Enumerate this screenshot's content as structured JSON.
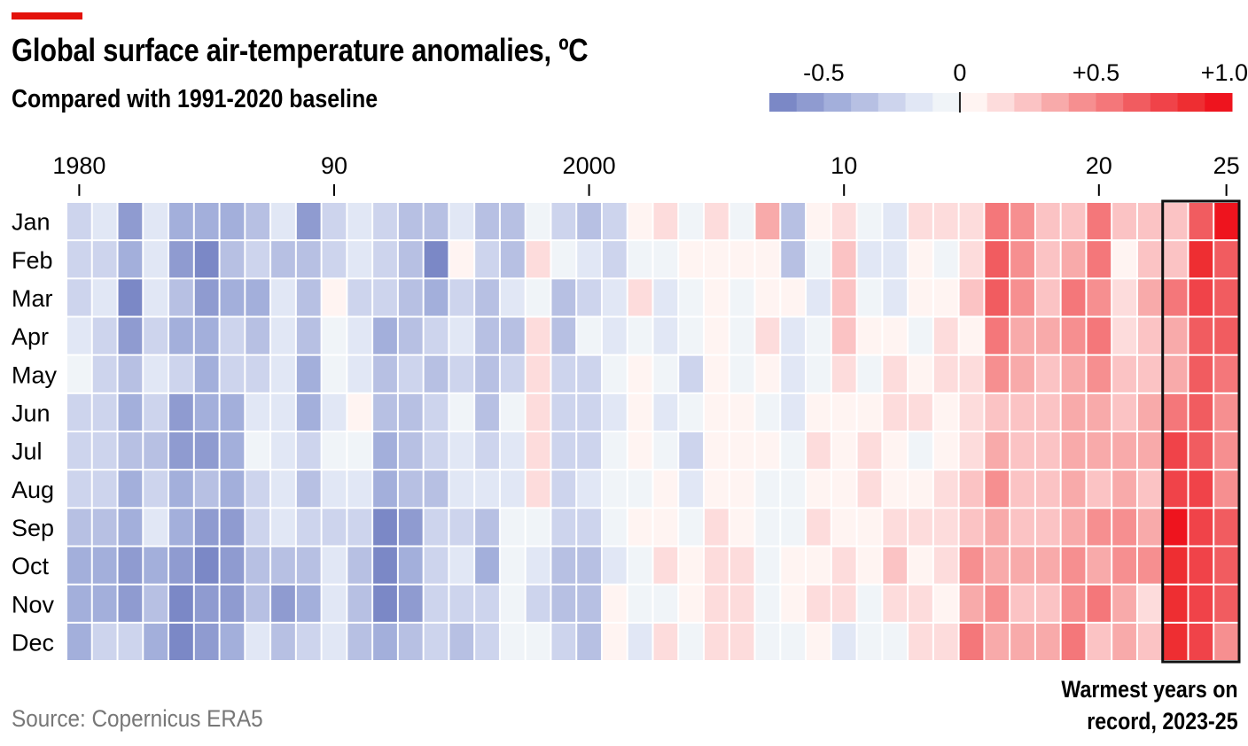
{
  "header": {
    "title": "Global surface air-temperature anomalies, ºC",
    "subtitle": "Compared with 1991-2020 baseline"
  },
  "footer": {
    "source": "Source: Copernicus ERA5",
    "annotation_line1": "Warmest years on",
    "annotation_line2": "record, 2023-25"
  },
  "colors": {
    "accent": "#e3120b",
    "negative_scale": [
      "#F0F4F8",
      "#E1E7F5",
      "#CDD4ED",
      "#B7C0E3",
      "#A3AFDB",
      "#8F9BD0",
      "#7B88C6"
    ],
    "positive_scale": [
      "#FFF4F2",
      "#FDDCDC",
      "#FBC3C4",
      "#F8AAAA",
      "#F68F90",
      "#F4777A",
      "#F15C60",
      "#F04349",
      "#EE2E32",
      "#EE141E"
    ]
  },
  "chart_data": {
    "type": "heatmap",
    "title": "Global surface air-temperature anomalies, ºC",
    "subtitle": "Compared with 1991-2020 baseline",
    "legend": {
      "placement": "top-right",
      "range": [
        -0.7,
        1.0
      ],
      "step": 0.1,
      "tick_labels": [
        "-0.5",
        "0",
        "+0.5",
        "+1.0"
      ],
      "tick_values": [
        -0.5,
        0,
        0.5,
        1.0
      ]
    },
    "x_tick_labels": [
      "1980",
      "90",
      "2000",
      "10",
      "20",
      "25"
    ],
    "x_tick_years": [
      1980,
      1990,
      2000,
      2010,
      2020,
      2025
    ],
    "year_range": [
      1980,
      2025
    ],
    "highlight": {
      "years": [
        2023,
        2025
      ],
      "label": "Warmest years on record, 2023-25"
    },
    "months": [
      "Jan",
      "Feb",
      "Mar",
      "Apr",
      "May",
      "Jun",
      "Jul",
      "Aug",
      "Sep",
      "Oct",
      "Nov",
      "Dec"
    ],
    "values": [
      [
        -0.25,
        -0.15,
        -0.55,
        -0.15,
        -0.45,
        -0.45,
        -0.45,
        -0.35,
        -0.15,
        -0.55,
        -0.25,
        -0.15,
        -0.25,
        -0.35,
        -0.35,
        -0.15,
        -0.35,
        -0.35,
        -0.05,
        -0.25,
        -0.35,
        -0.25,
        0.05,
        0.15,
        -0.05,
        0.15,
        -0.05,
        0.35,
        -0.35,
        0.05,
        0.15,
        -0.05,
        -0.15,
        0.15,
        0.15,
        0.15,
        0.55,
        0.45,
        0.25,
        0.25,
        0.55,
        0.25,
        0.25,
        0.25,
        0.65,
        0.95
      ],
      [
        -0.25,
        -0.25,
        -0.45,
        -0.15,
        -0.55,
        -0.65,
        -0.35,
        -0.25,
        -0.35,
        -0.35,
        -0.25,
        -0.15,
        -0.25,
        -0.35,
        -0.65,
        0.05,
        -0.25,
        -0.35,
        0.15,
        -0.05,
        -0.15,
        -0.25,
        -0.05,
        -0.05,
        0.05,
        0.05,
        0.05,
        0.05,
        -0.35,
        -0.05,
        0.25,
        -0.15,
        -0.15,
        0.05,
        -0.05,
        0.15,
        0.65,
        0.45,
        0.25,
        0.35,
        0.55,
        0.05,
        0.25,
        0.25,
        0.85,
        0.65
      ],
      [
        -0.25,
        -0.15,
        -0.65,
        -0.15,
        -0.35,
        -0.55,
        -0.45,
        -0.45,
        -0.15,
        -0.35,
        0.05,
        -0.25,
        -0.25,
        -0.35,
        -0.45,
        -0.25,
        -0.35,
        -0.15,
        -0.05,
        -0.35,
        -0.25,
        -0.15,
        0.15,
        -0.15,
        -0.05,
        0.05,
        -0.05,
        0.05,
        0.05,
        -0.15,
        0.25,
        -0.05,
        -0.15,
        0.05,
        0.05,
        0.25,
        0.65,
        0.45,
        0.25,
        0.55,
        0.45,
        0.15,
        0.35,
        0.55,
        0.75,
        0.65
      ],
      [
        -0.15,
        -0.25,
        -0.55,
        -0.25,
        -0.45,
        -0.45,
        -0.25,
        -0.35,
        -0.15,
        -0.35,
        -0.05,
        -0.15,
        -0.45,
        -0.35,
        -0.25,
        -0.15,
        -0.35,
        -0.35,
        0.15,
        -0.35,
        -0.05,
        -0.15,
        -0.05,
        -0.15,
        -0.05,
        0.05,
        -0.05,
        0.15,
        -0.15,
        -0.05,
        0.25,
        0.05,
        0.05,
        -0.05,
        0.15,
        0.05,
        0.55,
        0.35,
        0.35,
        0.45,
        0.55,
        0.15,
        0.25,
        0.35,
        0.65,
        0.65
      ],
      [
        -0.05,
        -0.25,
        -0.35,
        -0.15,
        -0.25,
        -0.45,
        -0.25,
        -0.25,
        -0.15,
        -0.45,
        -0.05,
        -0.15,
        -0.35,
        -0.25,
        -0.35,
        -0.25,
        -0.35,
        -0.25,
        0.15,
        -0.25,
        -0.25,
        -0.05,
        0.05,
        -0.05,
        -0.25,
        0.05,
        -0.05,
        0.05,
        -0.15,
        -0.05,
        0.15,
        -0.05,
        0.15,
        0.05,
        0.15,
        0.15,
        0.45,
        0.35,
        0.25,
        0.35,
        0.45,
        0.25,
        0.25,
        0.35,
        0.65,
        0.55
      ],
      [
        -0.25,
        -0.25,
        -0.45,
        -0.25,
        -0.55,
        -0.45,
        -0.45,
        -0.15,
        -0.15,
        -0.45,
        -0.15,
        0.05,
        -0.35,
        -0.35,
        -0.25,
        -0.05,
        -0.35,
        -0.05,
        0.15,
        -0.25,
        -0.25,
        -0.15,
        0.05,
        -0.15,
        -0.05,
        0.05,
        0.05,
        -0.05,
        -0.15,
        0.05,
        0.05,
        0.05,
        0.15,
        0.15,
        0.05,
        0.15,
        0.25,
        0.25,
        0.25,
        0.35,
        0.35,
        0.25,
        0.35,
        0.55,
        0.65,
        0.45
      ],
      [
        -0.25,
        -0.25,
        -0.35,
        -0.35,
        -0.55,
        -0.55,
        -0.45,
        -0.05,
        -0.15,
        -0.25,
        -0.05,
        -0.05,
        -0.45,
        -0.35,
        -0.25,
        -0.15,
        -0.25,
        -0.15,
        0.15,
        -0.25,
        -0.25,
        -0.05,
        0.05,
        -0.05,
        -0.25,
        0.05,
        0.05,
        0.05,
        -0.05,
        0.15,
        0.05,
        0.15,
        0.05,
        -0.05,
        0.05,
        0.15,
        0.35,
        0.25,
        0.25,
        0.35,
        0.35,
        0.35,
        0.35,
        0.75,
        0.65,
        0.45
      ],
      [
        -0.25,
        -0.25,
        -0.45,
        -0.25,
        -0.45,
        -0.35,
        -0.45,
        -0.25,
        -0.15,
        -0.35,
        -0.15,
        -0.15,
        -0.45,
        -0.35,
        -0.35,
        -0.15,
        -0.15,
        -0.15,
        0.15,
        -0.25,
        -0.15,
        -0.05,
        -0.05,
        0.05,
        -0.15,
        0.05,
        0.05,
        -0.05,
        -0.05,
        0.05,
        0.05,
        0.15,
        0.05,
        0.05,
        0.15,
        0.25,
        0.45,
        0.25,
        0.25,
        0.35,
        0.25,
        0.35,
        0.25,
        0.75,
        0.75,
        0.45
      ],
      [
        -0.35,
        -0.35,
        -0.45,
        -0.15,
        -0.45,
        -0.55,
        -0.55,
        -0.25,
        -0.15,
        -0.25,
        -0.25,
        -0.25,
        -0.65,
        -0.55,
        -0.25,
        -0.25,
        -0.35,
        -0.05,
        -0.05,
        -0.25,
        -0.25,
        -0.05,
        0.05,
        0.05,
        -0.05,
        0.15,
        0.05,
        -0.05,
        -0.05,
        0.15,
        0.05,
        0.05,
        0.15,
        0.15,
        0.15,
        0.25,
        0.35,
        0.25,
        0.25,
        0.35,
        0.45,
        0.45,
        0.35,
        0.95,
        0.75,
        0.65
      ],
      [
        -0.45,
        -0.45,
        -0.55,
        -0.45,
        -0.55,
        -0.65,
        -0.55,
        -0.35,
        -0.35,
        -0.35,
        -0.15,
        -0.35,
        -0.65,
        -0.45,
        -0.25,
        -0.15,
        -0.45,
        -0.05,
        -0.15,
        -0.35,
        -0.35,
        -0.15,
        -0.05,
        0.15,
        0.05,
        0.15,
        0.15,
        -0.05,
        0.05,
        0.05,
        0.15,
        0.05,
        0.25,
        0.05,
        0.15,
        0.45,
        0.35,
        0.35,
        0.35,
        0.45,
        0.35,
        0.45,
        0.45,
        0.85,
        0.75,
        0.65
      ],
      [
        -0.45,
        -0.45,
        -0.55,
        -0.35,
        -0.65,
        -0.55,
        -0.55,
        -0.35,
        -0.55,
        -0.45,
        -0.15,
        -0.35,
        -0.65,
        -0.55,
        -0.25,
        -0.25,
        -0.25,
        -0.05,
        -0.25,
        -0.35,
        -0.35,
        0.05,
        -0.05,
        -0.05,
        0.05,
        0.15,
        0.15,
        -0.05,
        0.05,
        0.15,
        0.15,
        -0.05,
        0.15,
        0.15,
        0.05,
        0.35,
        0.45,
        0.25,
        0.25,
        0.45,
        0.55,
        0.35,
        0.15,
        0.85,
        0.75,
        0.65
      ],
      [
        -0.45,
        -0.25,
        -0.25,
        -0.45,
        -0.65,
        -0.55,
        -0.45,
        -0.15,
        -0.35,
        -0.25,
        -0.15,
        -0.35,
        -0.45,
        -0.35,
        -0.25,
        -0.35,
        -0.25,
        -0.05,
        -0.05,
        -0.25,
        -0.35,
        0.05,
        -0.15,
        0.15,
        -0.05,
        0.15,
        0.15,
        -0.05,
        -0.05,
        0.05,
        -0.15,
        -0.05,
        -0.05,
        0.15,
        0.15,
        0.55,
        0.35,
        0.35,
        0.35,
        0.55,
        0.25,
        0.35,
        0.25,
        0.85,
        0.75,
        0.45
      ]
    ]
  }
}
